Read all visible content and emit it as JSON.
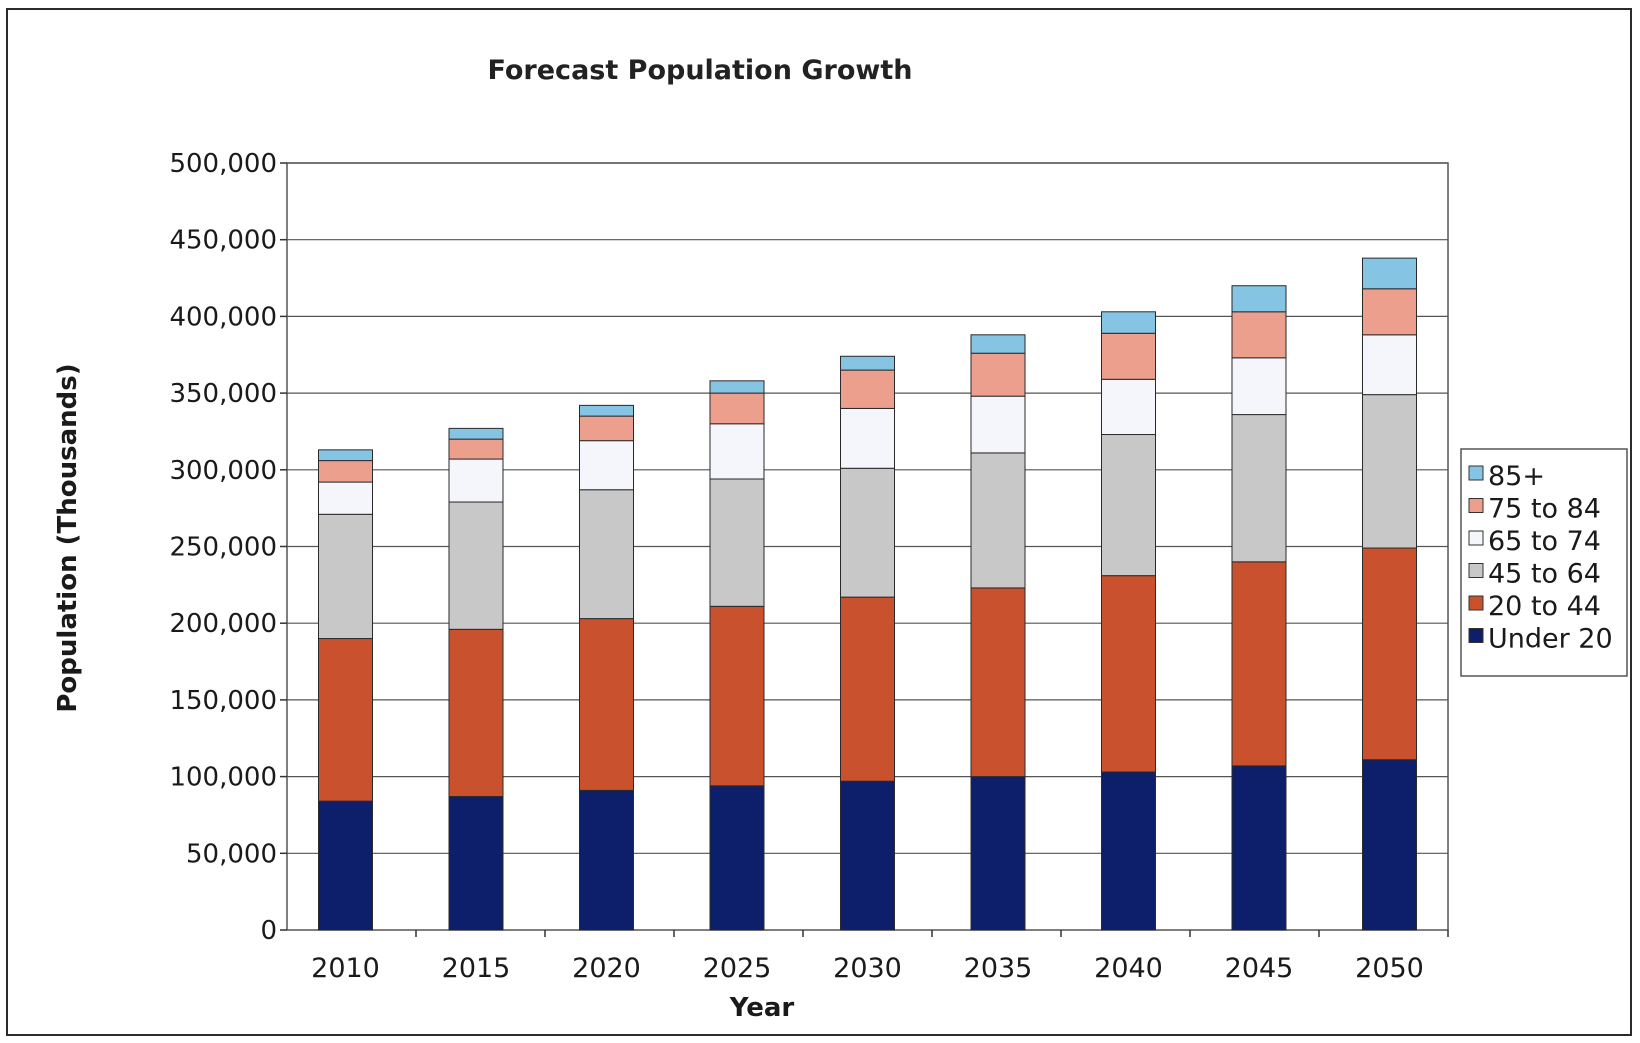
{
  "chart_data": {
    "type": "bar",
    "stacked": true,
    "title": "Forecast Population Growth",
    "xlabel": "Year",
    "ylabel": "Population (Thousands)",
    "ylim": [
      0,
      500000
    ],
    "yticks": [
      "0",
      "50,000",
      "100,000",
      "150,000",
      "200,000",
      "250,000",
      "300,000",
      "350,000",
      "400,000",
      "450,000",
      "500,000"
    ],
    "grid": true,
    "legend_position": "right",
    "categories": [
      "2010",
      "2015",
      "2020",
      "2025",
      "2030",
      "2035",
      "2040",
      "2045",
      "2050"
    ],
    "series": [
      {
        "name": "Under 20",
        "color": "#0d1f6b",
        "values": [
          84000,
          87000,
          91000,
          94000,
          97000,
          100000,
          103000,
          107000,
          111000
        ]
      },
      {
        "name": "20 to 44",
        "color": "#c9512e",
        "values": [
          106000,
          109000,
          112000,
          117000,
          120000,
          123000,
          128000,
          133000,
          138000
        ]
      },
      {
        "name": "45 to 64",
        "color": "#c8c8c8",
        "values": [
          81000,
          83000,
          84000,
          83000,
          84000,
          88000,
          92000,
          96000,
          100000
        ]
      },
      {
        "name": "65 to 74",
        "color": "#f4f6fb",
        "values": [
          21000,
          28000,
          32000,
          36000,
          39000,
          37000,
          36000,
          37000,
          39000
        ]
      },
      {
        "name": "75 to 84",
        "color": "#ec9f8c",
        "values": [
          14000,
          13000,
          16000,
          20000,
          25000,
          28000,
          30000,
          30000,
          30000
        ]
      },
      {
        "name": "85+",
        "color": "#85c4e3",
        "values": [
          7000,
          7000,
          7000,
          8000,
          9000,
          12000,
          14000,
          17000,
          20000
        ]
      }
    ]
  }
}
